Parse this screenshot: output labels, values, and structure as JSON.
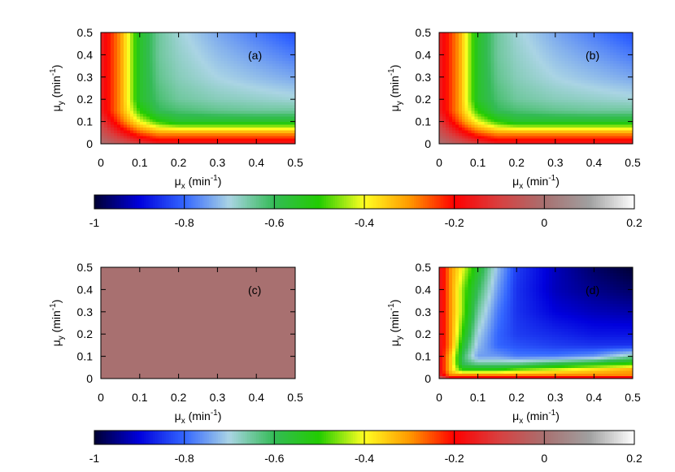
{
  "chart_data": [
    {
      "type": "heatmap",
      "panel_label": "(a)",
      "xlabel": "μx (min-1)",
      "ylabel": "μy (min-1)",
      "xlim": [
        0,
        0.5
      ],
      "ylim": [
        0,
        0.5
      ],
      "xticks": [
        "0",
        "0.1",
        "0.2",
        "0.3",
        "0.4",
        "0.5"
      ],
      "yticks": [
        "0",
        "0.1",
        "0.2",
        "0.3",
        "0.4",
        "0.5"
      ],
      "colorbar": "top",
      "x": [
        0.0,
        0.05,
        0.1,
        0.15,
        0.2,
        0.3,
        0.4,
        0.5
      ],
      "y": [
        0.0,
        0.05,
        0.1,
        0.15,
        0.2,
        0.3,
        0.4,
        0.5
      ],
      "z": [
        [
          0.0,
          -0.05,
          -0.1,
          -0.15,
          -0.15,
          -0.15,
          -0.15,
          -0.15
        ],
        [
          -0.05,
          -0.15,
          -0.25,
          -0.3,
          -0.3,
          -0.3,
          -0.3,
          -0.3
        ],
        [
          -0.1,
          -0.25,
          -0.4,
          -0.5,
          -0.55,
          -0.55,
          -0.55,
          -0.55
        ],
        [
          -0.15,
          -0.3,
          -0.5,
          -0.6,
          -0.62,
          -0.64,
          -0.65,
          -0.65
        ],
        [
          -0.15,
          -0.3,
          -0.55,
          -0.62,
          -0.65,
          -0.67,
          -0.68,
          -0.69
        ],
        [
          -0.15,
          -0.3,
          -0.55,
          -0.64,
          -0.67,
          -0.7,
          -0.72,
          -0.74
        ],
        [
          -0.15,
          -0.3,
          -0.55,
          -0.65,
          -0.68,
          -0.72,
          -0.75,
          -0.78
        ],
        [
          -0.15,
          -0.3,
          -0.55,
          -0.65,
          -0.69,
          -0.74,
          -0.78,
          -0.82
        ]
      ]
    },
    {
      "type": "heatmap",
      "panel_label": "(b)",
      "xlabel": "μx (min-1)",
      "ylabel": "μy (min-1)",
      "xlim": [
        0,
        0.5
      ],
      "ylim": [
        0,
        0.5
      ],
      "xticks": [
        "0",
        "0.1",
        "0.2",
        "0.3",
        "0.4",
        "0.5"
      ],
      "yticks": [
        "0",
        "0.1",
        "0.2",
        "0.3",
        "0.4",
        "0.5"
      ],
      "colorbar": "top",
      "x": [
        0.0,
        0.05,
        0.1,
        0.15,
        0.2,
        0.3,
        0.4,
        0.5
      ],
      "y": [
        0.0,
        0.05,
        0.1,
        0.15,
        0.2,
        0.3,
        0.4,
        0.5
      ],
      "z": [
        [
          0.0,
          -0.05,
          -0.1,
          -0.15,
          -0.15,
          -0.15,
          -0.15,
          -0.15
        ],
        [
          -0.05,
          -0.15,
          -0.25,
          -0.3,
          -0.3,
          -0.3,
          -0.3,
          -0.3
        ],
        [
          -0.1,
          -0.25,
          -0.4,
          -0.5,
          -0.55,
          -0.55,
          -0.55,
          -0.55
        ],
        [
          -0.15,
          -0.3,
          -0.5,
          -0.6,
          -0.62,
          -0.64,
          -0.65,
          -0.65
        ],
        [
          -0.15,
          -0.3,
          -0.55,
          -0.62,
          -0.65,
          -0.67,
          -0.68,
          -0.69
        ],
        [
          -0.15,
          -0.3,
          -0.55,
          -0.64,
          -0.67,
          -0.7,
          -0.72,
          -0.74
        ],
        [
          -0.15,
          -0.3,
          -0.55,
          -0.65,
          -0.68,
          -0.72,
          -0.75,
          -0.78
        ],
        [
          -0.15,
          -0.3,
          -0.55,
          -0.65,
          -0.69,
          -0.74,
          -0.78,
          -0.82
        ]
      ]
    },
    {
      "type": "heatmap",
      "panel_label": "(c)",
      "xlabel": "μx (min-1)",
      "ylabel": "μy (min-1)",
      "xlim": [
        0,
        0.5
      ],
      "ylim": [
        0,
        0.5
      ],
      "xticks": [
        "0",
        "0.1",
        "0.2",
        "0.3",
        "0.4",
        "0.5"
      ],
      "yticks": [
        "0",
        "0.1",
        "0.2",
        "0.3",
        "0.4",
        "0.5"
      ],
      "colorbar": "bottom",
      "x": [
        0.0,
        0.1,
        0.2,
        0.3,
        0.4,
        0.5
      ],
      "y": [
        0.0,
        0.1,
        0.2,
        0.3,
        0.4,
        0.5
      ],
      "z": [
        [
          0.0,
          0.0,
          0.0,
          0.0,
          0.0,
          0.0
        ],
        [
          0.0,
          0.0,
          0.0,
          0.0,
          0.0,
          0.0
        ],
        [
          0.0,
          0.0,
          0.0,
          0.0,
          0.0,
          0.0
        ],
        [
          0.0,
          0.0,
          0.0,
          0.0,
          0.0,
          0.0
        ],
        [
          0.0,
          0.0,
          0.0,
          0.0,
          0.0,
          0.0
        ],
        [
          0.0,
          0.0,
          0.0,
          0.0,
          0.0,
          0.0
        ]
      ]
    },
    {
      "type": "heatmap",
      "panel_label": "(d)",
      "xlabel": "μx (min-1)",
      "ylabel": "μy (min-1)",
      "xlim": [
        0,
        0.5
      ],
      "ylim": [
        0,
        0.5
      ],
      "xticks": [
        "0",
        "0.1",
        "0.2",
        "0.3",
        "0.4",
        "0.5"
      ],
      "yticks": [
        "0",
        "0.1",
        "0.2",
        "0.3",
        "0.4",
        "0.5"
      ],
      "colorbar": "bottom",
      "x": [
        0.0,
        0.03,
        0.06,
        0.1,
        0.15,
        0.2,
        0.3,
        0.4,
        0.5
      ],
      "y": [
        0.0,
        0.02,
        0.04,
        0.07,
        0.1,
        0.15,
        0.2,
        0.3,
        0.4,
        0.5
      ],
      "z": [
        [
          0.0,
          -0.15,
          -0.15,
          -0.15,
          -0.15,
          -0.15,
          -0.15,
          -0.15,
          -0.15
        ],
        [
          -0.15,
          -0.3,
          -0.3,
          -0.3,
          -0.3,
          -0.3,
          -0.3,
          -0.3,
          -0.3
        ],
        [
          -0.15,
          -0.35,
          -0.5,
          -0.5,
          -0.5,
          -0.45,
          -0.4,
          -0.35,
          -0.3
        ],
        [
          -0.15,
          -0.35,
          -0.6,
          -0.65,
          -0.65,
          -0.65,
          -0.6,
          -0.55,
          -0.5
        ],
        [
          -0.15,
          -0.35,
          -0.6,
          -0.75,
          -0.75,
          -0.78,
          -0.78,
          -0.75,
          -0.65
        ],
        [
          -0.15,
          -0.3,
          -0.55,
          -0.72,
          -0.8,
          -0.82,
          -0.84,
          -0.85,
          -0.85
        ],
        [
          -0.15,
          -0.3,
          -0.5,
          -0.7,
          -0.8,
          -0.84,
          -0.86,
          -0.88,
          -0.88
        ],
        [
          -0.15,
          -0.3,
          -0.45,
          -0.65,
          -0.78,
          -0.85,
          -0.9,
          -0.92,
          -0.93
        ],
        [
          -0.15,
          -0.3,
          -0.45,
          -0.6,
          -0.75,
          -0.85,
          -0.92,
          -0.95,
          -0.97
        ],
        [
          -0.15,
          -0.3,
          -0.4,
          -0.55,
          -0.72,
          -0.84,
          -0.92,
          -0.97,
          -1.0
        ]
      ]
    }
  ],
  "colorbars": [
    {
      "position": "top",
      "range": [
        -1,
        0.2
      ],
      "tick_labels": [
        "-1",
        "-0.8",
        "-0.6",
        "-0.4",
        "-0.2",
        "0",
        "0.2"
      ],
      "tick_values": [
        -1,
        -0.8,
        -0.6,
        -0.4,
        -0.2,
        0,
        0.2
      ]
    },
    {
      "position": "bottom",
      "range": [
        -1,
        0.2
      ],
      "tick_labels": [
        "-1",
        "-0.8",
        "-0.6",
        "-0.4",
        "-0.2",
        "0",
        "0.2"
      ],
      "tick_values": [
        -1,
        -0.8,
        -0.6,
        -0.4,
        -0.2,
        0,
        0.2
      ]
    }
  ],
  "palette": {
    "stops": [
      {
        "v": -1.0,
        "color": "#000033"
      },
      {
        "v": -0.9,
        "color": "#0000dd"
      },
      {
        "v": -0.8,
        "color": "#3366ff"
      },
      {
        "v": -0.7,
        "color": "#aad4e4"
      },
      {
        "v": -0.6,
        "color": "#33bb55"
      },
      {
        "v": -0.5,
        "color": "#22cc00"
      },
      {
        "v": -0.4,
        "color": "#ffff22"
      },
      {
        "v": -0.3,
        "color": "#ff9900"
      },
      {
        "v": -0.2,
        "color": "#ff0000"
      },
      {
        "v": -0.1,
        "color": "#d84040"
      },
      {
        "v": 0.0,
        "color": "#a87070"
      },
      {
        "v": 0.1,
        "color": "#a0a0a0"
      },
      {
        "v": 0.2,
        "color": "#ffffff"
      }
    ]
  }
}
